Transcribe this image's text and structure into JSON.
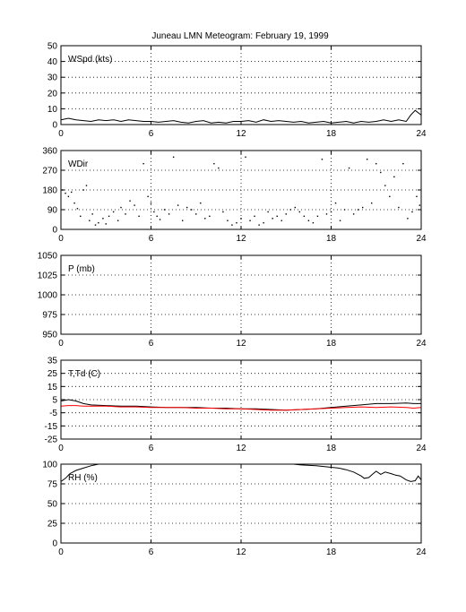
{
  "title": "Juneau LMN Meteogram:  February 19, 1999",
  "chart_data": [
    {
      "type": "line",
      "label": "WSpd (kts)",
      "xlim": [
        0,
        24
      ],
      "ylim": [
        0,
        50
      ],
      "xticks": [
        0,
        6,
        12,
        18,
        24
      ],
      "yticks": [
        0,
        10,
        20,
        30,
        40,
        50
      ],
      "grid": true,
      "series": [
        {
          "color": "#000000",
          "x": [
            0,
            0.5,
            1,
            1.5,
            2,
            2.5,
            3,
            3.5,
            4,
            4.5,
            5,
            5.5,
            6,
            6.5,
            7,
            7.5,
            8,
            8.5,
            9,
            9.5,
            10,
            10.5,
            11,
            11.5,
            12,
            12.5,
            13,
            13.5,
            14,
            14.5,
            15,
            15.5,
            16,
            16.5,
            17,
            17.5,
            18,
            18.5,
            19,
            19.5,
            20,
            20.5,
            21,
            21.5,
            22,
            22.5,
            23,
            23.3,
            23.6,
            24
          ],
          "y": [
            3,
            4,
            3,
            2.5,
            2,
            3,
            2.5,
            3,
            2,
            3,
            2.5,
            2,
            2,
            1.5,
            2,
            2.5,
            1.5,
            1,
            2,
            2.5,
            1,
            1.5,
            1,
            2,
            2,
            2.5,
            1.5,
            3,
            2,
            2.5,
            2,
            1.5,
            2,
            1,
            1.5,
            2,
            1,
            1.5,
            2,
            1,
            2,
            1.5,
            2,
            3,
            2,
            3,
            2,
            6,
            9,
            6
          ]
        }
      ]
    },
    {
      "type": "scatter",
      "label": "WDir",
      "xlim": [
        0,
        24
      ],
      "ylim": [
        0,
        360
      ],
      "xticks": [
        0,
        6,
        12,
        18,
        24
      ],
      "yticks": [
        0,
        90,
        180,
        270,
        360
      ],
      "grid": true,
      "series": [
        {
          "color": "#000000",
          "x": [
            0.1,
            0.3,
            0.5,
            0.7,
            0.9,
            1.1,
            1.3,
            1.5,
            1.7,
            1.9,
            2.1,
            2.3,
            2.5,
            2.8,
            3.0,
            3.2,
            3.5,
            3.8,
            4.0,
            4.3,
            4.6,
            4.9,
            5.2,
            5.5,
            5.8,
            6.0,
            6.2,
            6.4,
            6.6,
            6.9,
            7.2,
            7.5,
            7.8,
            8.1,
            8.4,
            8.7,
            9.0,
            9.3,
            9.6,
            9.9,
            10.2,
            10.5,
            10.8,
            11.1,
            11.4,
            11.7,
            12.0,
            12.3,
            12.6,
            12.9,
            13.2,
            13.5,
            13.8,
            14.1,
            14.4,
            14.7,
            15.0,
            15.3,
            15.6,
            15.9,
            16.2,
            16.5,
            16.8,
            17.1,
            17.4,
            17.7,
            18.0,
            18.3,
            18.6,
            18.9,
            19.2,
            19.5,
            19.8,
            20.1,
            20.4,
            20.7,
            21.0,
            21.3,
            21.6,
            21.9,
            22.2,
            22.5,
            22.8,
            23.1,
            23.4,
            23.7,
            23.9
          ],
          "y": [
            180,
            165,
            150,
            170,
            120,
            95,
            60,
            180,
            200,
            40,
            70,
            20,
            30,
            50,
            25,
            60,
            80,
            40,
            100,
            70,
            130,
            110,
            60,
            300,
            150,
            120,
            80,
            60,
            45,
            90,
            70,
            330,
            110,
            40,
            100,
            90,
            70,
            120,
            50,
            60,
            300,
            280,
            80,
            40,
            20,
            30,
            50,
            330,
            40,
            60,
            20,
            30,
            80,
            50,
            60,
            40,
            70,
            90,
            100,
            80,
            60,
            40,
            30,
            60,
            320,
            70,
            80,
            120,
            40,
            90,
            280,
            70,
            90,
            100,
            320,
            120,
            300,
            260,
            200,
            150,
            240,
            100,
            300,
            50,
            80,
            150,
            110
          ]
        }
      ]
    },
    {
      "type": "line",
      "label": "P (mb)",
      "xlim": [
        0,
        24
      ],
      "ylim": [
        950,
        1050
      ],
      "xticks": [
        0,
        6,
        12,
        18,
        24
      ],
      "yticks": [
        950,
        975,
        1000,
        1025,
        1050
      ],
      "grid": true,
      "series": []
    },
    {
      "type": "line",
      "label": "T,Td (C)",
      "xlim": [
        0,
        24
      ],
      "ylim": [
        -25,
        35
      ],
      "xticks": [
        0,
        6,
        12,
        18,
        24
      ],
      "yticks": [
        -25,
        -15,
        -5,
        5,
        15,
        25,
        35
      ],
      "grid": true,
      "series": [
        {
          "color": "#000000",
          "x": [
            0,
            0.5,
            1,
            1.5,
            2,
            3,
            4,
            5,
            6,
            7,
            8,
            9,
            10,
            11,
            12,
            13,
            14,
            15,
            16,
            17,
            18,
            19,
            20,
            21,
            22,
            23,
            23.5,
            24
          ],
          "y": [
            4,
            5,
            4,
            2,
            1,
            0.5,
            0,
            0,
            -0.5,
            -1,
            -1,
            -1,
            -1.5,
            -1.5,
            -2,
            -2,
            -2.5,
            -3,
            -2.5,
            -2,
            -1,
            0,
            1,
            2,
            2,
            2.5,
            2,
            2
          ]
        },
        {
          "color": "#ff0000",
          "x": [
            0,
            0.5,
            1,
            1.5,
            2,
            3,
            4,
            5,
            6,
            7,
            8,
            9,
            10,
            11,
            12,
            13,
            14,
            15,
            16,
            17,
            18,
            19,
            20,
            21,
            22,
            23,
            23.5,
            24
          ],
          "y": [
            0,
            0.5,
            0.5,
            0,
            0,
            0,
            -0.5,
            -0.5,
            -1,
            -1,
            -1,
            -1.5,
            -1.5,
            -2,
            -2,
            -2.5,
            -3,
            -3,
            -2.5,
            -2,
            -1.5,
            -1,
            -0.5,
            -1,
            -0.5,
            -1,
            -1.5,
            -1
          ]
        }
      ]
    },
    {
      "type": "line",
      "label": "RH (%)",
      "xlim": [
        0,
        24
      ],
      "ylim": [
        0,
        100
      ],
      "xticks": [
        0,
        6,
        12,
        18,
        24
      ],
      "yticks": [
        0,
        25,
        50,
        75,
        100
      ],
      "grid": true,
      "series": [
        {
          "color": "#000000",
          "x": [
            0,
            0.3,
            0.6,
            1.0,
            1.5,
            2.0,
            2.5,
            3.0,
            3.5
          ],
          "y": [
            78,
            82,
            88,
            92,
            95,
            98,
            100,
            100,
            100
          ]
        },
        {
          "color": "#000000",
          "x": [
            15.5,
            16,
            17,
            17.5,
            18,
            18.5,
            19,
            19.5,
            20,
            20.2,
            20.5,
            20.8,
            21,
            21.3,
            21.6,
            22,
            22.3,
            22.6,
            23,
            23.3,
            23.6,
            23.8,
            24
          ],
          "y": [
            100,
            99,
            98,
            97,
            96,
            95,
            93,
            90,
            85,
            82,
            83,
            88,
            91,
            87,
            90,
            88,
            86,
            85,
            80,
            78,
            79,
            85,
            80
          ]
        }
      ]
    }
  ]
}
